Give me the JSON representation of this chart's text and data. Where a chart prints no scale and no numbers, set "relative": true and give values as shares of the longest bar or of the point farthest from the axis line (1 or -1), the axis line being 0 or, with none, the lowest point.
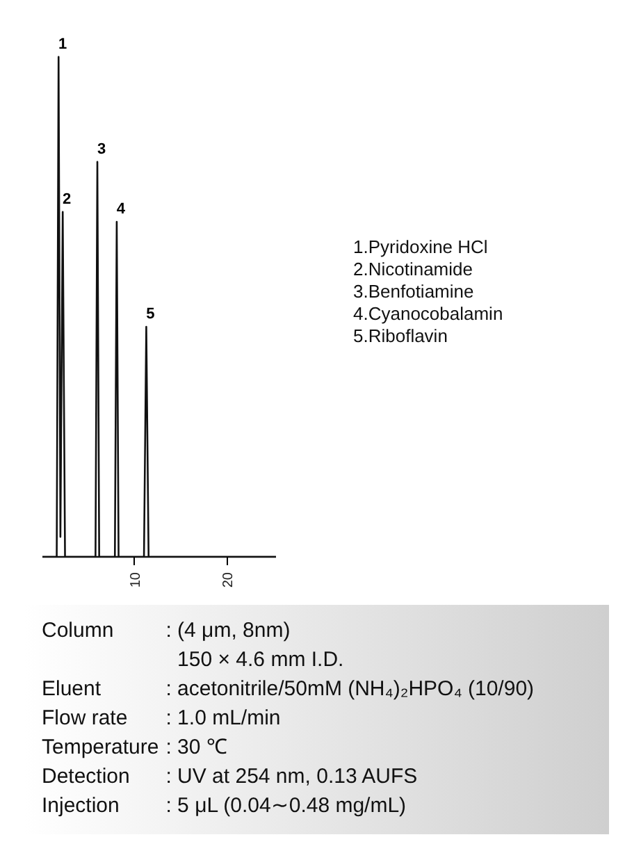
{
  "chart_data": {
    "type": "line",
    "relative": true,
    "grid": false,
    "marker": "none",
    "line_style": "solid",
    "tick_labels": "x",
    "xlim": [
      0,
      25.3
    ],
    "xticks": [
      10,
      20
    ],
    "series": [
      {
        "color": "#111111",
        "x": [
          0,
          1.55,
          1.75,
          1.95,
          2.2,
          2.45,
          5.75,
          5.95,
          6.15,
          7.85,
          8.05,
          8.25,
          11.0,
          11.25,
          11.5,
          25.3
        ],
        "values": [
          0,
          0,
          1,
          0.04,
          0.69,
          0,
          0,
          0.79,
          0,
          0,
          0.67,
          0,
          0,
          0.46,
          0,
          0
        ]
      }
    ],
    "annotations": [
      {
        "text": "1",
        "x": 1.75,
        "y": 1
      },
      {
        "text": "2",
        "x": 2.2,
        "y": 0.69
      },
      {
        "text": "3",
        "x": 5.95,
        "y": 0.79
      },
      {
        "text": "4",
        "x": 8.05,
        "y": 0.67
      },
      {
        "text": "5",
        "x": 11.25,
        "y": 0.46
      },
      "1.Pyridoxine HCl",
      "2.Nicotinamide",
      "3.Benfotiamine",
      "4.Cyanocobalamin",
      "5.Riboflavin",
      "Column : (4 μm, 8nm)",
      "150 × 4.6 mm I.D.",
      "Eluent : acetonitrile/50mM (NH₄)₂HPO₄ (10/90)",
      "Flow rate : 1.0 mL/min",
      "Temperature : 30 ℃",
      "Detection : UV at 254 nm, 0.13 AUFS",
      "Injection : 5 μL (0.04∼0.48 mg/mL)"
    ]
  }
}
